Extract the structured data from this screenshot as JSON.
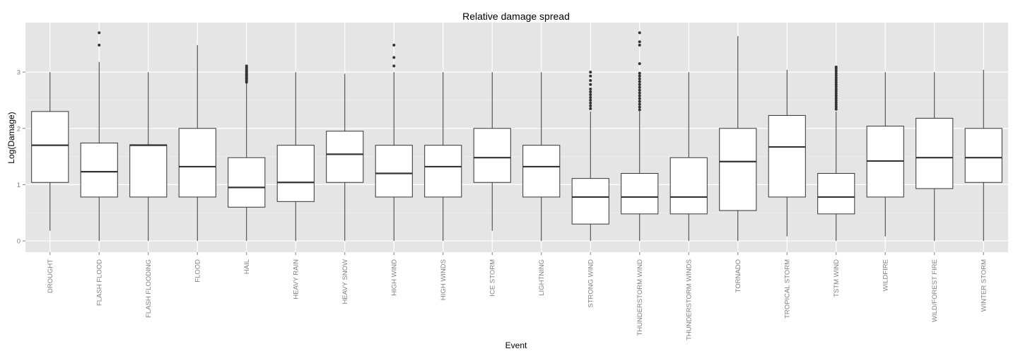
{
  "chart_data": {
    "type": "boxplot",
    "title": "Relative damage spread",
    "xlabel": "Event",
    "ylabel": "Log(Damage)",
    "ylim": [
      -0.2,
      3.88
    ],
    "yticks": [
      0,
      1,
      2,
      3
    ],
    "grid": true,
    "legend": "none",
    "categories": [
      "DROUGHT",
      "FLASH FLOOD",
      "FLASH FLOODING",
      "FLOOD",
      "HAIL",
      "HEAVY RAIN",
      "HEAVY SNOW",
      "HIGH WIND",
      "HIGH WINDS",
      "ICE STORM",
      "LIGHTNING",
      "STRONG WIND",
      "THUNDERSTORM WIND",
      "THUNDERSTORM WINDS",
      "TORNADO",
      "TROPICAL STORM",
      "TSTM WIND",
      "WILDFIRE",
      "WILD/FOREST FIRE",
      "WINTER STORM"
    ],
    "boxes": [
      {
        "min": 0.18,
        "q1": 1.04,
        "median": 1.7,
        "q3": 2.3,
        "max": 3.0,
        "outliers": []
      },
      {
        "min": 0.0,
        "q1": 0.78,
        "median": 1.23,
        "q3": 1.74,
        "max": 3.18,
        "outliers": [
          3.48,
          3.7
        ]
      },
      {
        "min": 0.0,
        "q1": 0.78,
        "median": 1.7,
        "q3": 1.71,
        "max": 3.0,
        "outliers": []
      },
      {
        "min": 0.0,
        "q1": 0.78,
        "median": 1.32,
        "q3": 2.0,
        "max": 3.48,
        "outliers": []
      },
      {
        "min": 0.0,
        "q1": 0.6,
        "median": 0.95,
        "q3": 1.48,
        "max": 2.8,
        "outliers": [
          2.82,
          2.85,
          2.88,
          2.9,
          2.93,
          2.95,
          2.97,
          3.0,
          3.02,
          3.05,
          3.08,
          3.11
        ]
      },
      {
        "min": 0.0,
        "q1": 0.7,
        "median": 1.04,
        "q3": 1.7,
        "max": 3.0,
        "outliers": []
      },
      {
        "min": 0.0,
        "q1": 1.04,
        "median": 1.54,
        "q3": 1.95,
        "max": 2.97,
        "outliers": []
      },
      {
        "min": 0.0,
        "q1": 0.78,
        "median": 1.2,
        "q3": 1.7,
        "max": 3.0,
        "outliers": [
          3.11,
          3.26,
          3.48
        ]
      },
      {
        "min": 0.0,
        "q1": 0.78,
        "median": 1.32,
        "q3": 1.7,
        "max": 3.0,
        "outliers": []
      },
      {
        "min": 0.18,
        "q1": 1.04,
        "median": 1.48,
        "q3": 2.0,
        "max": 3.0,
        "outliers": []
      },
      {
        "min": 0.0,
        "q1": 0.78,
        "median": 1.32,
        "q3": 1.7,
        "max": 3.0,
        "outliers": []
      },
      {
        "min": 0.0,
        "q1": 0.3,
        "median": 0.78,
        "q3": 1.11,
        "max": 2.3,
        "outliers": [
          2.35,
          2.4,
          2.45,
          2.5,
          2.55,
          2.6,
          2.65,
          2.7,
          2.78,
          2.85,
          2.93,
          3.0
        ]
      },
      {
        "min": 0.0,
        "q1": 0.48,
        "median": 0.78,
        "q3": 1.2,
        "max": 2.3,
        "outliers": [
          2.33,
          2.38,
          2.43,
          2.48,
          2.53,
          2.58,
          2.63,
          2.68,
          2.73,
          2.78,
          2.83,
          2.88,
          2.93,
          2.98,
          3.15,
          3.48,
          3.54,
          3.7
        ]
      },
      {
        "min": 0.0,
        "q1": 0.48,
        "median": 0.78,
        "q3": 1.48,
        "max": 3.0,
        "outliers": []
      },
      {
        "min": 0.0,
        "q1": 0.54,
        "median": 1.41,
        "q3": 2.0,
        "max": 3.64,
        "outliers": []
      },
      {
        "min": 0.08,
        "q1": 0.78,
        "median": 1.67,
        "q3": 2.23,
        "max": 3.04,
        "outliers": []
      },
      {
        "min": 0.0,
        "q1": 0.48,
        "median": 0.78,
        "q3": 1.2,
        "max": 2.3,
        "outliers": [
          2.34,
          2.38,
          2.42,
          2.46,
          2.5,
          2.54,
          2.58,
          2.62,
          2.66,
          2.7,
          2.74,
          2.78,
          2.82,
          2.86,
          2.9,
          2.94,
          2.98,
          3.02,
          3.06,
          3.09
        ]
      },
      {
        "min": 0.08,
        "q1": 0.78,
        "median": 1.42,
        "q3": 2.04,
        "max": 3.0,
        "outliers": []
      },
      {
        "min": 0.0,
        "q1": 0.93,
        "median": 1.48,
        "q3": 2.18,
        "max": 3.0,
        "outliers": []
      },
      {
        "min": 0.0,
        "q1": 1.04,
        "median": 1.48,
        "q3": 2.0,
        "max": 3.04,
        "outliers": []
      }
    ]
  }
}
